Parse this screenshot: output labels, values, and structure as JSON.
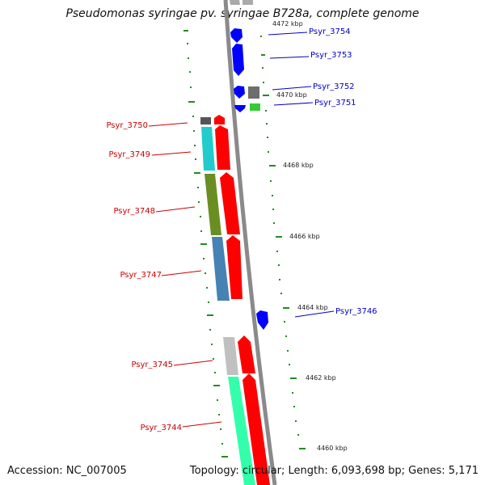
{
  "title": "Pseudomonas syringae pv. syringae B728a, complete genome",
  "footer": {
    "accession": "Accession: NC_007005",
    "summary": "Topology: circular; Length: 6,093,698 bp; Genes: 5,171"
  },
  "colors": {
    "forward_strand": "#ff0000",
    "reverse_strand": "#0000ff",
    "forward_label": "#cc0000",
    "reverse_label": "#0000cc",
    "backbone": "#888888",
    "tick": "#228b22"
  },
  "ticks": [
    "4472 kbp",
    "4470 kbp",
    "4468 kbp",
    "4466 kbp",
    "4464 kbp",
    "4462 kbp",
    "4460 kbp"
  ],
  "genes_reverse": [
    "Psyr_3754",
    "Psyr_3753",
    "Psyr_3752",
    "Psyr_3751",
    "Psyr_3746"
  ],
  "genes_forward": [
    "Psyr_3750",
    "Psyr_3749",
    "Psyr_3748",
    "Psyr_3747",
    "Psyr_3745",
    "Psyr_3744"
  ]
}
